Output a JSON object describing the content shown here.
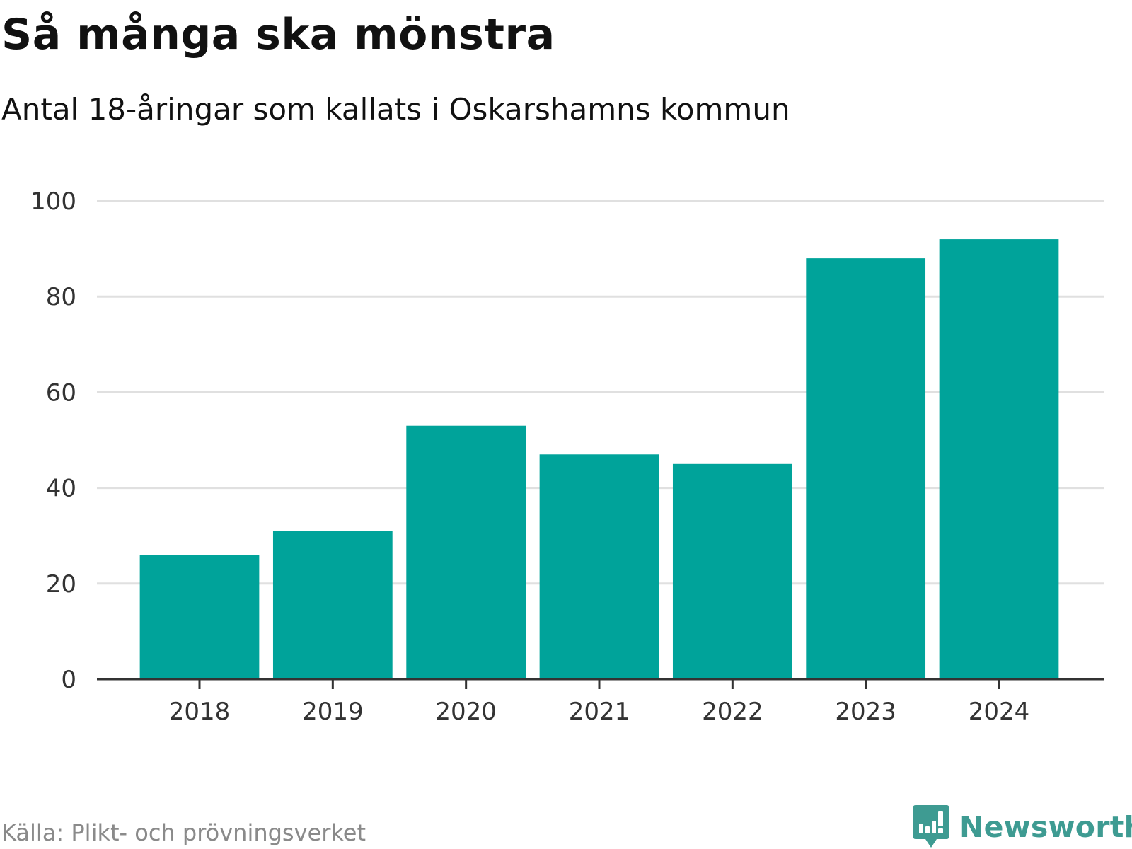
{
  "title": "Så många ska mönstra",
  "subtitle": "Antal 18-åringar som kallats i Oskarshamns kommun",
  "source": "Källa: Plikt- och prövningsverket",
  "brand": "Newsworthy",
  "colors": {
    "bar": "#00a39a",
    "grid": "#e0e0e0",
    "axis": "#333333",
    "brand": "#3e9b92",
    "source": "#8a8a8a"
  },
  "chart_data": {
    "type": "bar",
    "categories": [
      "2018",
      "2019",
      "2020",
      "2021",
      "2022",
      "2023",
      "2024"
    ],
    "values": [
      26,
      31,
      53,
      47,
      45,
      88,
      92
    ],
    "ylim": [
      0,
      100
    ],
    "yticks": [
      "0",
      "20",
      "40",
      "60",
      "80",
      "100"
    ],
    "grid": true,
    "xlabel": "",
    "ylabel": ""
  }
}
